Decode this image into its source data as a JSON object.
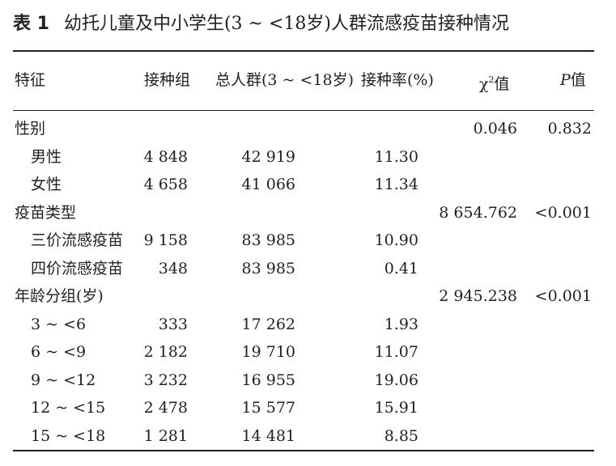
{
  "title": {
    "label": "表 1",
    "text": "幼托儿童及中小学生(3 ~ <18岁)人群流感疫苗接种情况"
  },
  "columns": {
    "feature": "特征",
    "vaccinated": "接种组",
    "total": "总人群(3 ~ <18岁)",
    "rate": "接种率(%)",
    "chi_symbol": "χ",
    "chi_sup": "2",
    "chi_suffix": "值",
    "p_symbol": "P",
    "p_suffix": "值"
  },
  "rows": [
    {
      "label": "性别",
      "vaccinated": "",
      "total": "",
      "rate": "",
      "chi2": "0.046",
      "p": "0.832"
    },
    {
      "label": "男性",
      "vaccinated": "4 848",
      "total": "42 919",
      "rate": "11.30",
      "chi2": "",
      "p": ""
    },
    {
      "label": "女性",
      "vaccinated": "4 658",
      "total": "41 066",
      "rate": "11.34",
      "chi2": "",
      "p": ""
    },
    {
      "label": "疫苗类型",
      "vaccinated": "",
      "total": "",
      "rate": "",
      "chi2": "8 654.762",
      "p": "<0.001"
    },
    {
      "label": "三价流感疫苗",
      "vaccinated": "9 158",
      "total": "83 985",
      "rate": "10.90",
      "chi2": "",
      "p": ""
    },
    {
      "label": "四价流感疫苗",
      "vaccinated": "348",
      "total": "83 985",
      "rate": "0.41",
      "chi2": "",
      "p": ""
    },
    {
      "label": "年龄分组(岁)",
      "vaccinated": "",
      "total": "",
      "rate": "",
      "chi2": "2 945.238",
      "p": "<0.001"
    },
    {
      "label": "3 ~ <6",
      "vaccinated": "333",
      "total": "17 262",
      "rate": "1.93",
      "chi2": "",
      "p": ""
    },
    {
      "label": "6 ~ <9",
      "vaccinated": "2 182",
      "total": "19 710",
      "rate": "11.07",
      "chi2": "",
      "p": ""
    },
    {
      "label": "9 ~ <12",
      "vaccinated": "3 232",
      "total": "16 955",
      "rate": "19.06",
      "chi2": "",
      "p": ""
    },
    {
      "label": "12 ~ <15",
      "vaccinated": "2 478",
      "total": "15 577",
      "rate": "15.91",
      "chi2": "",
      "p": ""
    },
    {
      "label": "15 ~ <18",
      "vaccinated": "1 281",
      "total": "14 481",
      "rate": "8.85",
      "chi2": "",
      "p": ""
    }
  ]
}
